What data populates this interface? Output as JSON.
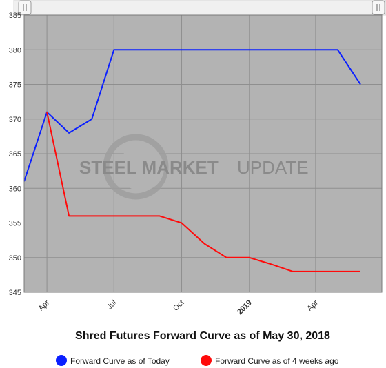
{
  "chart_data": {
    "type": "line",
    "title": "Shred Futures Forward Curve as of May 30, 2018",
    "ylim": [
      345,
      385
    ],
    "yticks": [
      345,
      350,
      355,
      360,
      365,
      370,
      375,
      380,
      385
    ],
    "xlim": [
      "2018-03-01",
      "2019-06-30"
    ],
    "xticks": [
      {
        "label": "Apr",
        "date": "2018-04-01",
        "bold": false
      },
      {
        "label": "Jul",
        "date": "2018-07-01",
        "bold": false
      },
      {
        "label": "Oct",
        "date": "2018-10-01",
        "bold": false
      },
      {
        "label": "2019",
        "date": "2019-01-01",
        "bold": true
      },
      {
        "label": "Apr",
        "date": "2019-04-01",
        "bold": false
      }
    ],
    "grid": true,
    "legend_position": "bottom-center",
    "series": [
      {
        "name": "Forward Curve as of Today",
        "color": "#0a1fff",
        "points": [
          {
            "x": "2018-03-01",
            "y": 361
          },
          {
            "x": "2018-04-01",
            "y": 371
          },
          {
            "x": "2018-05-01",
            "y": 368
          },
          {
            "x": "2018-06-01",
            "y": 370
          },
          {
            "x": "2018-07-01",
            "y": 380
          },
          {
            "x": "2018-08-01",
            "y": 380
          },
          {
            "x": "2018-09-01",
            "y": 380
          },
          {
            "x": "2018-10-01",
            "y": 380
          },
          {
            "x": "2018-11-01",
            "y": 380
          },
          {
            "x": "2018-12-01",
            "y": 380
          },
          {
            "x": "2019-01-01",
            "y": 380
          },
          {
            "x": "2019-02-01",
            "y": 380
          },
          {
            "x": "2019-03-01",
            "y": 380
          },
          {
            "x": "2019-04-01",
            "y": 380
          },
          {
            "x": "2019-05-01",
            "y": 380
          },
          {
            "x": "2019-06-01",
            "y": 375
          }
        ]
      },
      {
        "name": "Forward Curve as of 4 weeks ago",
        "color": "#ff0a0a",
        "points": [
          {
            "x": "2018-04-01",
            "y": 371
          },
          {
            "x": "2018-05-01",
            "y": 356
          },
          {
            "x": "2018-06-01",
            "y": 356
          },
          {
            "x": "2018-07-01",
            "y": 356
          },
          {
            "x": "2018-08-01",
            "y": 356
          },
          {
            "x": "2018-09-01",
            "y": 356
          },
          {
            "x": "2018-10-01",
            "y": 355
          },
          {
            "x": "2018-11-01",
            "y": 352
          },
          {
            "x": "2018-12-01",
            "y": 350
          },
          {
            "x": "2019-01-01",
            "y": 350
          },
          {
            "x": "2019-02-01",
            "y": 349
          },
          {
            "x": "2019-03-01",
            "y": 348
          },
          {
            "x": "2019-04-01",
            "y": 348
          },
          {
            "x": "2019-05-01",
            "y": 348
          },
          {
            "x": "2019-06-01",
            "y": 348
          }
        ]
      }
    ]
  },
  "watermark": {
    "bold": "STEEL MARKET",
    "light": "UPDATE",
    "color": "#8a8a8a"
  },
  "colors": {
    "plot_background": "#b3b3b3",
    "gridline": "#8f8f8f",
    "scrollbar_background": "#f0f0f0"
  },
  "navigator": {
    "left_handle_icon": "grip-handle-icon",
    "right_handle_icon": "grip-handle-icon"
  }
}
